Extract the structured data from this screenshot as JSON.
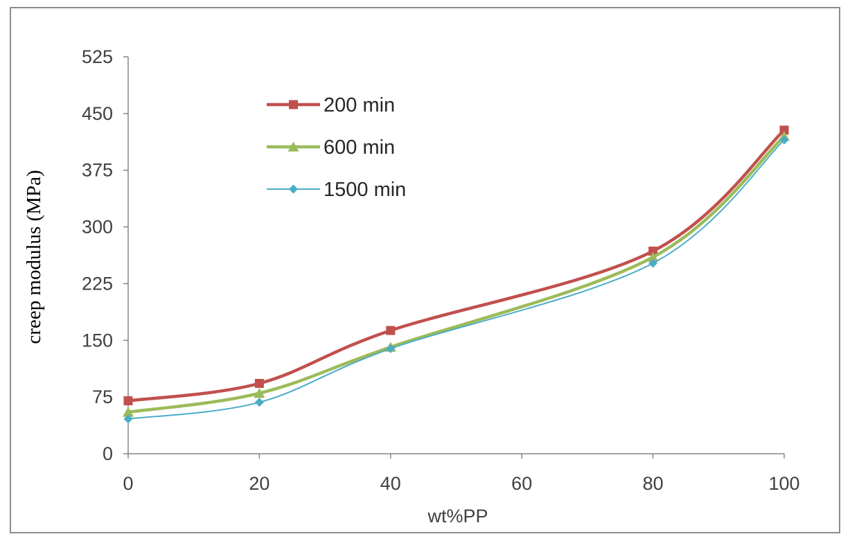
{
  "chart_data": {
    "type": "line",
    "xlabel": "wt%PP",
    "ylabel": "creep  modulus (MPa)",
    "x": [
      0,
      20,
      40,
      80,
      100
    ],
    "xlim": [
      0,
      100
    ],
    "ylim": [
      0,
      525
    ],
    "xticks": [
      "0",
      "20",
      "40",
      "60",
      "80",
      "100"
    ],
    "yticks": [
      "0",
      "75",
      "150",
      "225",
      "300",
      "375",
      "450",
      "525"
    ],
    "grid": false,
    "legend_position": "top-left",
    "series": [
      {
        "name": "200 min",
        "color": "#c0504d",
        "marker": "square",
        "values": [
          70,
          93,
          163,
          268,
          428
        ]
      },
      {
        "name": "600 min",
        "color": "#9bbb59",
        "marker": "triangle",
        "values": [
          55,
          80,
          141,
          260,
          420
        ]
      },
      {
        "name": "1500 min",
        "color": "#4bacc6",
        "marker": "diamond",
        "values": [
          46,
          68,
          139,
          252,
          415
        ]
      }
    ]
  }
}
